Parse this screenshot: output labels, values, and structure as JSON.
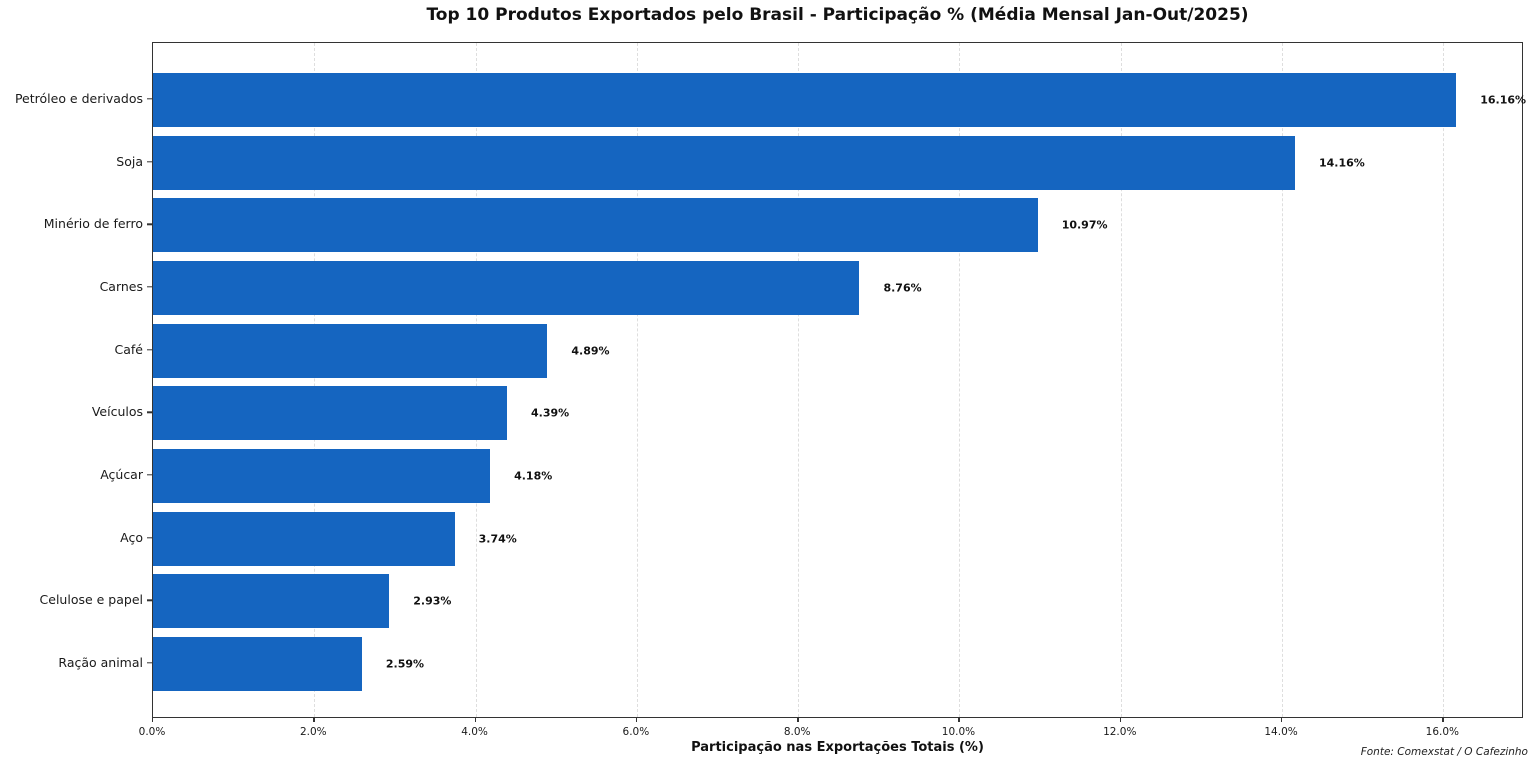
{
  "title": "Top 10 Produtos Exportados pelo Brasil - Participação % (Média Mensal Jan-Out/2025)",
  "source_note": "Fonte: Comexstat / O Cafezinho",
  "colors": {
    "bar": "#1565c0",
    "grid": "#dedede",
    "spine": "#333333",
    "text": "#111111"
  },
  "chart_data": {
    "type": "bar",
    "orientation": "horizontal",
    "title": "Top 10 Produtos Exportados pelo Brasil - Participação % (Média Mensal Jan-Out/2025)",
    "xlabel": "Participação nas Exportações Totais (%)",
    "ylabel": "",
    "categories": [
      "Petróleo e derivados",
      "Soja",
      "Minério de ferro",
      "Carnes",
      "Café",
      "Veículos",
      "Açúcar",
      "Aço",
      "Celulose e papel",
      "Ração animal"
    ],
    "values": [
      16.16,
      14.16,
      10.97,
      8.76,
      4.89,
      4.39,
      4.18,
      3.74,
      2.93,
      2.59
    ],
    "value_labels": [
      "16.16%",
      "14.16%",
      "10.97%",
      "8.76%",
      "4.89%",
      "4.39%",
      "4.18%",
      "3.74%",
      "2.93%",
      "2.59%"
    ],
    "xlim": [
      0,
      17
    ],
    "x_ticks": [
      0,
      2,
      4,
      6,
      8,
      10,
      12,
      14,
      16
    ],
    "x_tick_labels": [
      "0.0%",
      "2.0%",
      "4.0%",
      "6.0%",
      "8.0%",
      "10.0%",
      "12.0%",
      "14.0%",
      "16.0%"
    ],
    "grid": "vertical-dashed",
    "legend": "none",
    "bar_color": "#1565c0"
  }
}
